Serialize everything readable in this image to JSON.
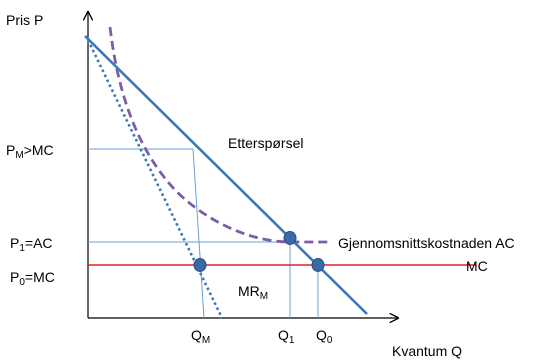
{
  "labels": {
    "y_axis_title": "Pris P",
    "x_axis_title": "Kvantum Q",
    "demand": "Etterspørsel",
    "average_cost": "Gjennomsnittskostnaden AC",
    "marginal_cost": "MC",
    "marginal_revenue": {
      "main": "MR",
      "sub": "M"
    },
    "price_monopoly": {
      "p": "P",
      "sub": "M",
      "rest": ">MC"
    },
    "price_one": {
      "p": "P",
      "sub": "1",
      "rest": "=AC"
    },
    "price_zero": {
      "p": "P",
      "sub": "0",
      "rest": "=MC"
    },
    "q_monopoly": {
      "q": "Q",
      "sub": "M"
    },
    "q_one": {
      "q": "Q",
      "sub": "1"
    },
    "q_zero": {
      "q": "Q",
      "sub": "0"
    }
  },
  "colors": {
    "demand": "#3b78b8",
    "average_cost": "#7b5ea7",
    "marginal_cost": "#e02020",
    "marginal_revenue": "#3b78b8",
    "guides": "#6a9fd4",
    "points": "#3a68a8",
    "axes": "#000000"
  }
}
